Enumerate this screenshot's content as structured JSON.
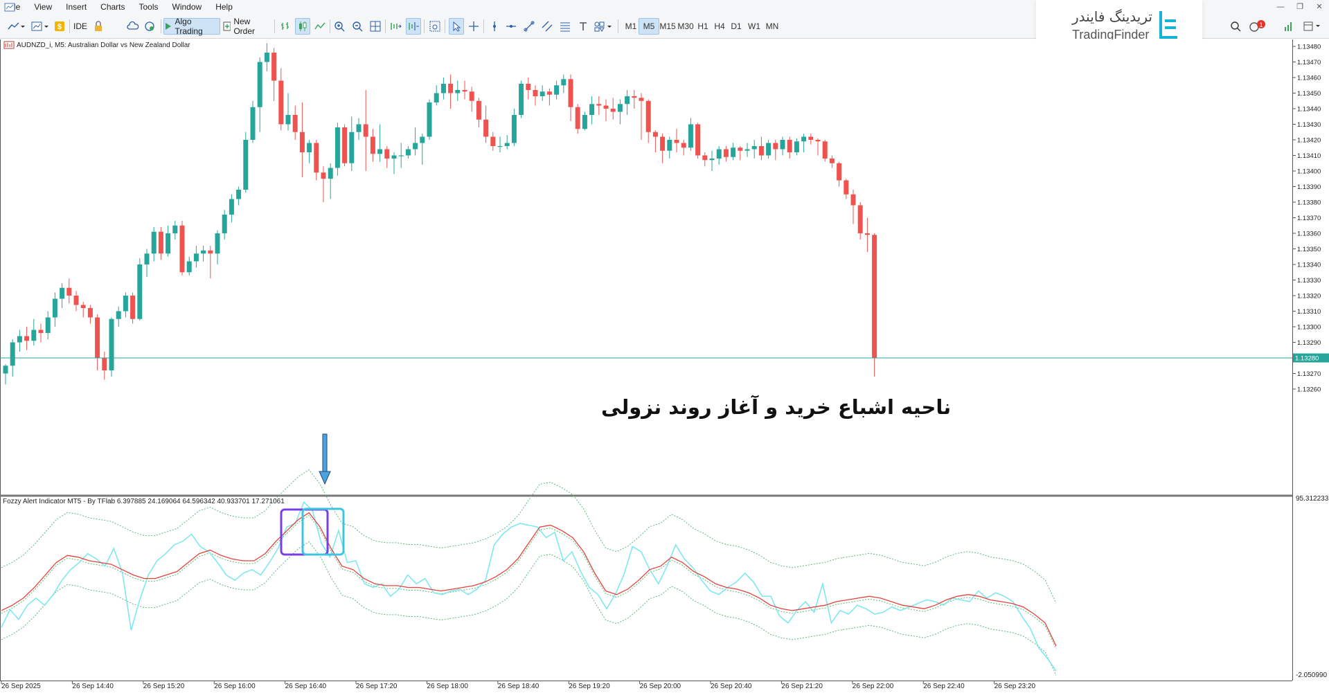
{
  "menu": [
    "File",
    "View",
    "Insert",
    "Charts",
    "Tools",
    "Window",
    "Help"
  ],
  "toolbar": {
    "ide_label": "IDE",
    "algo_label": "Algo Trading",
    "order_label": "New Order",
    "timeframes": [
      "M1",
      "M5",
      "M15",
      "M30",
      "H1",
      "H4",
      "D1",
      "W1",
      "MN"
    ],
    "active_timeframe": "M5",
    "icons": [
      "line-chart-icon",
      "bar-chart-icon",
      "dollar-icon",
      "lock-icon",
      "cloud-icon",
      "signal-icon",
      "bar-chart-type-icon",
      "candlestick-icon",
      "line-type-icon",
      "zoom-in-icon",
      "zoom-out-icon",
      "grid-icon",
      "autoscroll-icon",
      "chart-shift-icon",
      "screenshot-icon",
      "cursor-icon",
      "crosshair-icon",
      "vertical-line-icon",
      "horizontal-line-icon",
      "trendline-icon",
      "channel-icon",
      "fibonacci-icon",
      "text-icon",
      "shapes-icon"
    ],
    "notification_count": "1"
  },
  "brand": {
    "name_fa": "تریدینگ فایندر",
    "name_en": "TradingFinder"
  },
  "chart": {
    "symbol_label": "AUDNZD_i, M5:  Australian Dollar vs New Zealand Dollar",
    "current_price": "1.13280",
    "annotation": "ناحیه اشباع خرید و آغاز روند نزولی",
    "indicator_label": "Fozzy Alert Indicator MT5 - By TFlab 6.397885 24.169064 64.596342 40.933701 17.271061",
    "indicator_max": "95.312233",
    "indicator_min": "-2.050990",
    "colors": {
      "bull": "#26a69a",
      "bear": "#ef5350",
      "fast_line": "#7fe7f0",
      "slow_line": "#e5423a",
      "bands": "#5cb87a",
      "price_line": "#26a69a",
      "highlight_purple": "#7a3fe0",
      "highlight_cyan": "#3cc5e0"
    }
  },
  "chart_data": {
    "type": "candlestick",
    "y_ticks": [
      "1.13480",
      "1.13470",
      "1.13460",
      "1.13450",
      "1.13440",
      "1.13430",
      "1.13420",
      "1.13410",
      "1.13400",
      "1.13390",
      "1.13380",
      "1.13370",
      "1.13360",
      "1.13350",
      "1.13340",
      "1.13330",
      "1.13320",
      "1.13310",
      "1.13300",
      "1.13290",
      "1.13280",
      "1.13270",
      "1.13260"
    ],
    "ylim": [
      1.13255,
      1.13486
    ],
    "x_ticks": [
      "26 Sep 2025",
      "26 Sep 14:40",
      "26 Sep 15:20",
      "26 Sep 16:00",
      "26 Sep 16:40",
      "26 Sep 17:20",
      "26 Sep 18:00",
      "26 Sep 18:40",
      "26 Sep 19:20",
      "26 Sep 20:00",
      "26 Sep 20:40",
      "26 Sep 21:20",
      "26 Sep 22:00",
      "26 Sep 22:40",
      "26 Sep 23:20"
    ],
    "candles": [
      [
        1.1327,
        1.13275,
        1.13263,
        1.13276
      ],
      [
        1.13275,
        1.1329,
        1.13268,
        1.13292
      ],
      [
        1.1329,
        1.13294,
        1.13284,
        1.13298
      ],
      [
        1.13294,
        1.13291,
        1.13285,
        1.133
      ],
      [
        1.13291,
        1.13298,
        1.13288,
        1.13305
      ],
      [
        1.13298,
        1.13296,
        1.1329,
        1.13302
      ],
      [
        1.13296,
        1.13306,
        1.13292,
        1.1331
      ],
      [
        1.13306,
        1.13318,
        1.133,
        1.13322
      ],
      [
        1.13318,
        1.13325,
        1.13312,
        1.13328
      ],
      [
        1.13325,
        1.1332,
        1.13315,
        1.13331
      ],
      [
        1.1332,
        1.13314,
        1.1331,
        1.13323
      ],
      [
        1.13314,
        1.13312,
        1.13306,
        1.13316
      ],
      [
        1.13312,
        1.13306,
        1.13302,
        1.13314
      ],
      [
        1.13306,
        1.1328,
        1.13272,
        1.13308
      ],
      [
        1.1328,
        1.13272,
        1.13266,
        1.13284
      ],
      [
        1.13272,
        1.13305,
        1.13268,
        1.13306
      ],
      [
        1.13305,
        1.1331,
        1.133,
        1.13313
      ],
      [
        1.1331,
        1.1332,
        1.13306,
        1.13322
      ],
      [
        1.1332,
        1.13305,
        1.13302,
        1.13322
      ],
      [
        1.13305,
        1.1334,
        1.13304,
        1.13344
      ],
      [
        1.1334,
        1.13347,
        1.13332,
        1.1335
      ],
      [
        1.13347,
        1.13361,
        1.13342,
        1.13364
      ],
      [
        1.13361,
        1.13347,
        1.13343,
        1.13364
      ],
      [
        1.13347,
        1.1336,
        1.13345,
        1.13365
      ],
      [
        1.1336,
        1.13365,
        1.13356,
        1.13368
      ],
      [
        1.13365,
        1.13335,
        1.13333,
        1.13368
      ],
      [
        1.13335,
        1.13342,
        1.13333,
        1.13345
      ],
      [
        1.13342,
        1.13347,
        1.13338,
        1.13352
      ],
      [
        1.13347,
        1.13349,
        1.13342,
        1.13352
      ],
      [
        1.13349,
        1.13347,
        1.13331,
        1.13352
      ],
      [
        1.13347,
        1.1336,
        1.1334,
        1.13362
      ],
      [
        1.1336,
        1.13372,
        1.13356,
        1.13375
      ],
      [
        1.13372,
        1.13382,
        1.13367,
        1.13385
      ],
      [
        1.13382,
        1.13388,
        1.13378,
        1.1339
      ],
      [
        1.13388,
        1.1342,
        1.13386,
        1.13425
      ],
      [
        1.1342,
        1.13441,
        1.13418,
        1.13445
      ],
      [
        1.13441,
        1.1347,
        1.13425,
        1.13473
      ],
      [
        1.1347,
        1.13476,
        1.13464,
        1.13482
      ],
      [
        1.13476,
        1.13458,
        1.13445,
        1.13479
      ],
      [
        1.13458,
        1.1343,
        1.13426,
        1.13466
      ],
      [
        1.1343,
        1.13436,
        1.13426,
        1.1345
      ],
      [
        1.13436,
        1.13425,
        1.1342,
        1.13442
      ],
      [
        1.13425,
        1.13412,
        1.13396,
        1.13444
      ],
      [
        1.13412,
        1.13418,
        1.13405,
        1.1342
      ],
      [
        1.13418,
        1.13399,
        1.13394,
        1.1342
      ],
      [
        1.13399,
        1.13395,
        1.1338,
        1.13403
      ],
      [
        1.13395,
        1.13402,
        1.13382,
        1.13405
      ],
      [
        1.13402,
        1.13428,
        1.13397,
        1.13431
      ],
      [
        1.13428,
        1.13405,
        1.13403,
        1.1343
      ],
      [
        1.13405,
        1.13425,
        1.134,
        1.13435
      ],
      [
        1.13425,
        1.1343,
        1.1342,
        1.13434
      ],
      [
        1.1343,
        1.13422,
        1.134,
        1.13452
      ],
      [
        1.13422,
        1.13411,
        1.13406,
        1.13427
      ],
      [
        1.13411,
        1.13414,
        1.13406,
        1.1343
      ],
      [
        1.13414,
        1.13408,
        1.13402,
        1.13416
      ],
      [
        1.13408,
        1.1341,
        1.13398,
        1.13412
      ],
      [
        1.1341,
        1.1341,
        1.13402,
        1.13418
      ],
      [
        1.1341,
        1.13414,
        1.13408,
        1.13416
      ],
      [
        1.13414,
        1.13418,
        1.1341,
        1.13428
      ],
      [
        1.13418,
        1.13422,
        1.13404,
        1.13424
      ],
      [
        1.13422,
        1.13444,
        1.1342,
        1.13446
      ],
      [
        1.13444,
        1.1345,
        1.13442,
        1.13455
      ],
      [
        1.1345,
        1.13456,
        1.13446,
        1.1346
      ],
      [
        1.13456,
        1.1345,
        1.1344,
        1.13462
      ],
      [
        1.1345,
        1.13452,
        1.13445,
        1.13458
      ],
      [
        1.13452,
        1.13451,
        1.13446,
        1.13458
      ],
      [
        1.13451,
        1.13445,
        1.13438,
        1.13454
      ],
      [
        1.13445,
        1.13433,
        1.13428,
        1.13447
      ],
      [
        1.13433,
        1.13422,
        1.13418,
        1.13442
      ],
      [
        1.13422,
        1.13416,
        1.13413,
        1.13425
      ],
      [
        1.13416,
        1.13416,
        1.13412,
        1.13422
      ],
      [
        1.13416,
        1.13418,
        1.13414,
        1.13423
      ],
      [
        1.13418,
        1.13436,
        1.13416,
        1.1344
      ],
      [
        1.13436,
        1.13456,
        1.13434,
        1.13458
      ],
      [
        1.13456,
        1.13452,
        1.13446,
        1.1346
      ],
      [
        1.13452,
        1.13448,
        1.13442,
        1.13455
      ],
      [
        1.13448,
        1.13451,
        1.13445,
        1.13455
      ],
      [
        1.13451,
        1.13449,
        1.13442,
        1.13453
      ],
      [
        1.13449,
        1.13455,
        1.13446,
        1.13458
      ],
      [
        1.13455,
        1.13459,
        1.1345,
        1.13462
      ],
      [
        1.13459,
        1.13441,
        1.13432,
        1.13462
      ],
      [
        1.13441,
        1.13427,
        1.13424,
        1.13443
      ],
      [
        1.13427,
        1.13436,
        1.13426,
        1.13438
      ],
      [
        1.13436,
        1.13443,
        1.1343,
        1.13448
      ],
      [
        1.13443,
        1.13442,
        1.13436,
        1.13448
      ],
      [
        1.13442,
        1.1344,
        1.13432,
        1.13446
      ],
      [
        1.1344,
        1.13438,
        1.13433,
        1.13447
      ],
      [
        1.13438,
        1.13443,
        1.1343,
        1.13446
      ],
      [
        1.13443,
        1.13448,
        1.13436,
        1.13452
      ],
      [
        1.13448,
        1.13447,
        1.1344,
        1.13452
      ],
      [
        1.13447,
        1.13445,
        1.1342,
        1.1345
      ],
      [
        1.13445,
        1.13425,
        1.13418,
        1.13446
      ],
      [
        1.13425,
        1.13422,
        1.13412,
        1.13426
      ],
      [
        1.13422,
        1.13413,
        1.13405,
        1.13424
      ],
      [
        1.13413,
        1.1342,
        1.13408,
        1.13422
      ],
      [
        1.1342,
        1.13418,
        1.13412,
        1.13427
      ],
      [
        1.13418,
        1.13415,
        1.1341,
        1.1342
      ],
      [
        1.13415,
        1.1343,
        1.13413,
        1.13434
      ],
      [
        1.1343,
        1.1341,
        1.13408,
        1.13431
      ],
      [
        1.1341,
        1.13407,
        1.13403,
        1.13412
      ],
      [
        1.13407,
        1.13408,
        1.134,
        1.13413
      ],
      [
        1.13408,
        1.13414,
        1.13404,
        1.13416
      ],
      [
        1.13414,
        1.13409,
        1.13406,
        1.13416
      ],
      [
        1.13409,
        1.13415,
        1.13407,
        1.13418
      ],
      [
        1.13415,
        1.13413,
        1.13407,
        1.13416
      ],
      [
        1.13413,
        1.13414,
        1.13409,
        1.13418
      ],
      [
        1.13414,
        1.13416,
        1.13408,
        1.1342
      ],
      [
        1.13416,
        1.1341,
        1.13407,
        1.13422
      ],
      [
        1.1341,
        1.13418,
        1.13408,
        1.1342
      ],
      [
        1.13418,
        1.13414,
        1.13407,
        1.1342
      ],
      [
        1.13414,
        1.1342,
        1.1341,
        1.13422
      ],
      [
        1.1342,
        1.13412,
        1.13408,
        1.13422
      ],
      [
        1.13412,
        1.13419,
        1.1341,
        1.13421
      ],
      [
        1.13419,
        1.13422,
        1.13412,
        1.13424
      ],
      [
        1.13422,
        1.1342,
        1.13417,
        1.13424
      ],
      [
        1.1342,
        1.13419,
        1.1341,
        1.13421
      ],
      [
        1.13419,
        1.13408,
        1.13406,
        1.1342
      ],
      [
        1.13408,
        1.13405,
        1.13402,
        1.1341
      ],
      [
        1.13405,
        1.13394,
        1.1339,
        1.13406
      ],
      [
        1.13394,
        1.13385,
        1.13382,
        1.13395
      ],
      [
        1.13385,
        1.13378,
        1.13366,
        1.13388
      ],
      [
        1.13378,
        1.1336,
        1.13356,
        1.1338
      ],
      [
        1.1336,
        1.13359,
        1.13348,
        1.1337
      ],
      [
        1.13359,
        1.1328,
        1.13268,
        1.1336
      ]
    ],
    "indicator": {
      "fast": [
        25.5,
        35.5,
        30,
        38,
        42,
        38,
        44,
        52,
        58,
        62,
        67,
        64,
        60,
        70,
        56,
        24,
        41,
        55,
        63,
        67,
        72,
        74,
        78,
        71,
        68,
        62,
        55,
        52,
        56,
        58,
        55,
        62,
        70,
        82,
        84,
        96,
        91,
        73,
        65,
        80,
        62,
        63,
        50,
        48,
        50,
        43,
        47,
        55,
        50,
        53,
        45,
        44,
        46,
        47,
        44,
        47,
        52,
        72,
        78,
        82,
        84,
        83,
        82,
        76,
        79,
        63,
        68,
        57,
        48,
        44,
        36,
        44,
        55,
        71,
        68,
        58,
        50,
        60,
        72,
        64,
        59,
        52,
        46,
        44,
        48,
        51,
        56,
        51,
        43,
        43,
        32,
        28,
        35,
        40,
        34,
        50,
        28,
        35,
        33,
        38,
        36,
        33,
        34,
        37,
        35,
        37,
        39,
        41,
        40,
        38,
        42,
        41,
        40,
        46,
        42,
        45,
        43,
        40,
        32,
        25,
        14,
        8,
        1
      ],
      "slow": [
        35,
        38,
        42,
        48,
        55,
        62,
        66,
        65,
        63,
        62,
        61,
        58,
        55,
        53,
        53,
        55,
        57,
        62,
        67,
        69,
        66,
        64,
        63,
        63,
        67,
        74,
        80,
        86,
        90,
        82,
        70,
        60,
        58,
        53,
        50,
        49,
        49,
        48,
        48,
        47,
        46,
        47,
        48,
        49,
        51,
        54,
        58,
        64,
        73,
        82,
        83,
        80,
        76,
        68,
        56,
        46,
        44,
        47,
        52,
        58,
        60,
        65,
        62,
        57,
        54,
        50,
        48,
        47,
        45,
        42,
        38,
        36,
        35,
        36,
        37,
        38,
        40,
        41,
        42,
        43,
        42,
        40,
        38,
        37,
        36,
        38,
        41,
        43,
        44,
        43,
        41,
        40,
        39,
        37,
        33,
        28,
        15
      ]
    }
  }
}
